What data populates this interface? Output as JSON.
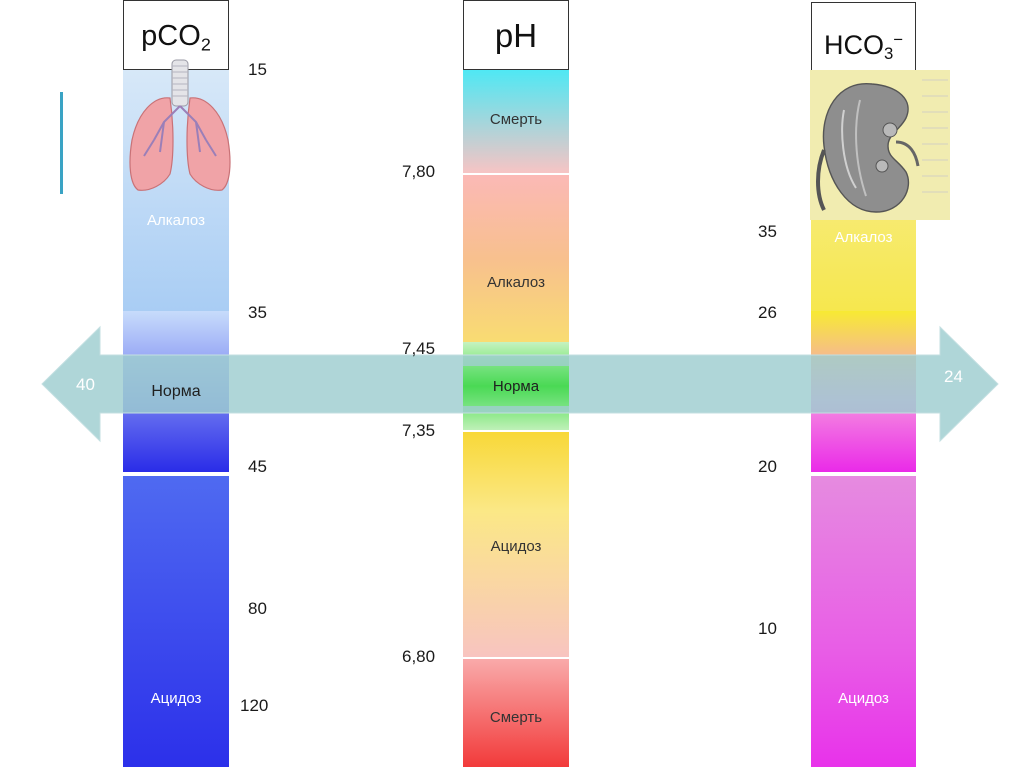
{
  "arrow": {
    "left_value": "40",
    "right_value": "24"
  },
  "pco2": {
    "header": {
      "main": "pCO",
      "sub": "2"
    },
    "zones": {
      "alkalosis": "Алкалоз",
      "norm": "Норма",
      "acidosis": "Ацидоз"
    },
    "ticks": [
      "15",
      "35",
      "45",
      "80",
      "120"
    ]
  },
  "ph": {
    "header": "pH",
    "zones": {
      "death_top": "Смерть",
      "alkalosis": "Алкалоз",
      "norm": "Норма",
      "acidosis": "Ацидоз",
      "death_bottom": "Смерть"
    },
    "ticks": [
      "7,80",
      "7,45",
      "7,35",
      "6,80"
    ]
  },
  "hco3": {
    "header": {
      "main": "HCO",
      "sub": "3",
      "sup": "−"
    },
    "zones": {
      "alkalosis": "Алкалоз",
      "acidosis": "Ацидоз"
    },
    "ticks": [
      "35",
      "26",
      "20",
      "10"
    ]
  },
  "colors": {
    "arrow": "#a9d3d6",
    "pco2_norm": "#2a2ce8",
    "pco2_acidosis": "#3b4cf0",
    "ph_norm": "#3ede3e",
    "hco3_norm": "#ee22ee",
    "hco3_acidosis": "#e83fe8"
  },
  "icons": {
    "lungs": "lungs-icon",
    "kidney": "kidney-icon"
  }
}
